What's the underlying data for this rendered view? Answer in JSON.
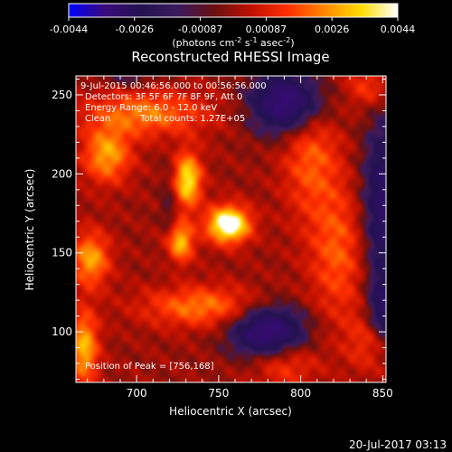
{
  "chart_data": {
    "type": "heatmap",
    "title": "Reconstructed RHESSI Image",
    "xlabel": "Heliocentric X (arcsec)",
    "ylabel": "Heliocentric Y (arcsec)",
    "xlim": [
      663,
      852
    ],
    "ylim": [
      68,
      262
    ],
    "x_ticks": [
      700,
      750,
      800,
      850
    ],
    "y_ticks": [
      100,
      150,
      200,
      250
    ],
    "colorbar": {
      "min": -0.0044,
      "max": 0.0044,
      "tick_labels": [
        "-0.0044",
        "-0.0026",
        "-0.00087",
        "0.00087",
        "0.0026",
        "0.0044"
      ],
      "units_prefix": "(photons cm",
      "units_exp1": "-2",
      "units_mid": " s",
      "units_exp2": "-1",
      "units_mid2": " asec",
      "units_exp3": "-2",
      "units_suffix": ")",
      "colors": [
        "#0000ff",
        "#3a0a7a",
        "#23124f",
        "#3b1a5e",
        "#6a1010",
        "#c01000",
        "#ff3000",
        "#ff8800",
        "#ffdd00",
        "#ffffff"
      ]
    },
    "info": {
      "time": "9-Jul-2015 00:46:56.000 to 00:56:56.000",
      "detectors": "Detectors: 3F 5F 6F 7F 8F 9F, Att 0",
      "energy": "Energy Range: 6.0 - 12.0 keV",
      "method": "Clean",
      "counts": "Total counts: 1.27E+05"
    },
    "peak_label": "Position of Peak = [756,168]",
    "peak": [
      756,
      168
    ],
    "sources": [
      {
        "x": 756,
        "y": 168,
        "sx": 9,
        "sy": 8,
        "amp": 1.0
      },
      {
        "x": 731,
        "y": 196,
        "sx": 6,
        "sy": 12,
        "amp": 0.75
      },
      {
        "x": 726,
        "y": 157,
        "sx": 6,
        "sy": 9,
        "amp": 0.65
      },
      {
        "x": 682,
        "y": 212,
        "sx": 10,
        "sy": 12,
        "amp": 0.55
      },
      {
        "x": 672,
        "y": 146,
        "sx": 8,
        "sy": 12,
        "amp": 0.55
      },
      {
        "x": 668,
        "y": 90,
        "sx": 6,
        "sy": 16,
        "amp": 0.6
      },
      {
        "x": 706,
        "y": 238,
        "sx": 26,
        "sy": 10,
        "amp": 0.45
      },
      {
        "x": 740,
        "y": 116,
        "sx": 25,
        "sy": 9,
        "amp": 0.45
      },
      {
        "x": 806,
        "y": 216,
        "sx": 12,
        "sy": 30,
        "amp": 0.38
      },
      {
        "x": 823,
        "y": 150,
        "sx": 12,
        "sy": 30,
        "amp": 0.36
      },
      {
        "x": 842,
        "y": 255,
        "sx": 10,
        "sy": 10,
        "amp": 0.3
      },
      {
        "x": 842,
        "y": 95,
        "sx": 10,
        "sy": 14,
        "amp": 0.28
      },
      {
        "x": 790,
        "y": 80,
        "sx": 14,
        "sy": 10,
        "amp": 0.32
      }
    ],
    "negative_regions": [
      {
        "x": 793,
        "y": 245,
        "sx": 16,
        "sy": 14,
        "amp": -0.8
      },
      {
        "x": 780,
        "y": 100,
        "sx": 16,
        "sy": 12,
        "amp": -0.75
      },
      {
        "x": 852,
        "y": 180,
        "sx": 10,
        "sy": 40,
        "amp": -0.6
      },
      {
        "x": 852,
        "y": 112,
        "sx": 8,
        "sy": 14,
        "amp": -0.5
      },
      {
        "x": 720,
        "y": 175,
        "sx": 4,
        "sy": 22,
        "amp": -0.2
      },
      {
        "x": 695,
        "y": 260,
        "sx": 12,
        "sy": 4,
        "amp": -0.2
      }
    ]
  },
  "footer": {
    "timestamp": "20-Jul-2017 03:13"
  }
}
